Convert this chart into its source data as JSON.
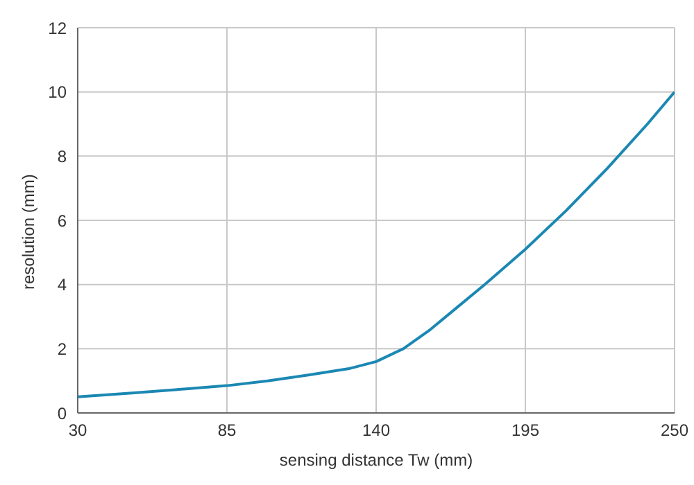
{
  "chart_data": {
    "type": "line",
    "xlabel": "sensing distance Tw (mm)",
    "ylabel": "resolution (mm)",
    "x": [
      30,
      50,
      70,
      85,
      100,
      115,
      130,
      140,
      150,
      160,
      170,
      180,
      195,
      210,
      225,
      240,
      250
    ],
    "series": [
      {
        "color": "#1b88b3",
        "values": [
          0.5,
          0.62,
          0.75,
          0.85,
          1.0,
          1.18,
          1.38,
          1.6,
          2.0,
          2.6,
          3.3,
          4.0,
          5.1,
          6.3,
          7.6,
          9.0,
          10.0
        ]
      }
    ],
    "xlim": [
      30,
      250
    ],
    "xticks": [
      30,
      85,
      140,
      195,
      250
    ],
    "ylim": [
      0,
      12
    ],
    "yticks": [
      0,
      2,
      4,
      6,
      8,
      10,
      12
    ],
    "grid": true,
    "legend": false,
    "marker": "none",
    "line_style": "solid"
  }
}
